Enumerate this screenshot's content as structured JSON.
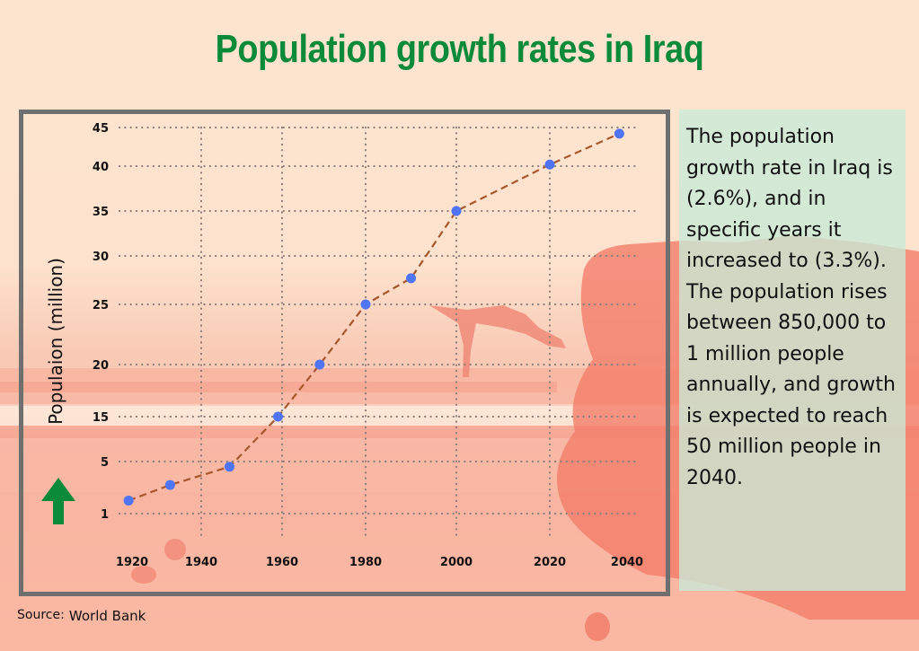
{
  "title": "Population growth rates in Iraq",
  "colors": {
    "title": "#0b8a3a",
    "arrow": "#0b8a3a",
    "line": "#a8572e",
    "point": "#4f74f5",
    "grid": "#8a7f7a",
    "frame": "#6f6f6f",
    "info_box": "#c8ebd7"
  },
  "info_text": "The population growth rate in Iraq is (2.6%), and in specific years it increased to (3.3%). The population rises between 850,000 to 1 million people annually, and growth is expected to reach 50 million people in 2040.",
  "source": {
    "label": "Source:",
    "value": "World Bank"
  },
  "arrow_icon": "up-arrow-icon",
  "chart_data": {
    "type": "line",
    "title": "Population growth rates in Iraq",
    "xlabel": "",
    "ylabel": "Populaion (million)",
    "x_ticks": [
      "1920",
      "1940",
      "1960",
      "1980",
      "2000",
      "2020",
      "2040"
    ],
    "y_ticks": [
      "1",
      "5",
      "15",
      "20",
      "25",
      "30",
      "35",
      "40",
      "45"
    ],
    "y_tick_values": [
      1,
      5,
      15,
      20,
      25,
      30,
      35,
      40,
      45
    ],
    "x_tick_values": [
      1920,
      1940,
      1960,
      1980,
      2000,
      2020,
      2040
    ],
    "ylim": [
      1,
      45
    ],
    "xlim": [
      1920,
      2040
    ],
    "grid": true,
    "line_style": "dashed",
    "series": [
      {
        "name": "Population (million)",
        "x": [
          1919,
          1931,
          1947,
          1959,
          1969,
          1980,
          1990,
          2000,
          2020,
          2038
        ],
        "values": [
          2,
          3.2,
          4.6,
          15,
          20,
          25,
          27.7,
          35,
          40.2,
          44.2
        ]
      }
    ]
  }
}
